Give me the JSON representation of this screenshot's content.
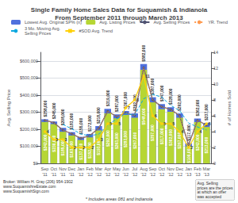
{
  "chart_data": {
    "type": "bar",
    "title": "Single Family Home Sales Data for Suquamish & Indianola\nFrom September 2011 through March 2013",
    "categories": [
      "Sep\n'11",
      "Oct\n'11",
      "Nov\n'11",
      "Dec\n'11",
      "Jan\n'12",
      "Feb\n'12",
      "Mar\n'12",
      "Apr\n'12",
      "May\n'12",
      "Jun\n'12",
      "Jul\n'12",
      "Aug\n'12",
      "Sep\n'12",
      "Oct\n'12",
      "Nov\n'12",
      "Dec\n'12",
      "Jan\n'13",
      "Feb\n'13",
      "Mar\n'13"
    ],
    "series": [
      {
        "name": "Lowest Avg. Original SP% (n)",
        "type": "bar",
        "data_labels": true,
        "values": [
          258000,
          245000,
          208000,
          183000,
          155000,
          172000,
          218000,
          319000,
          287000,
          307000,
          292000,
          582000,
          387000,
          347000,
          328000,
          292000,
          117000,
          262000,
          237000
        ],
        "value_labels": [
          "$258,000",
          "$245,000",
          "$208,000",
          "$183,000",
          "$155,000",
          "$172,000",
          "$218,000",
          "$319,000",
          "$287,000",
          "$307,000",
          "$292,000",
          "$582,000",
          "$387,000",
          "$347,000",
          "$328,000",
          "$292,000",
          "$117,000",
          "$262,000",
          "$237,000"
        ]
      },
      {
        "name": "Avg. Listing Prices",
        "type": "bar",
        "data_labels": true,
        "values": [
          242000,
          230000,
          185000,
          163000,
          137000,
          152000,
          193000,
          292000,
          263000,
          283000,
          267000,
          548000,
          357000,
          317000,
          302000,
          267000,
          100000,
          242000,
          213000
        ],
        "value_labels": [
          "$242,000",
          "$230,000",
          "$185,000",
          "$163,000",
          "$137,000",
          "$152,000",
          "$193,000",
          "$292,000",
          "$263,000",
          "$283,000",
          "$267,000",
          "$548,000",
          "$357,000",
          "$317,000",
          "$302,000",
          "$267,000",
          "$100,000",
          "$242,000",
          "$213,000"
        ]
      },
      {
        "name": "Avg. Selling Prices",
        "type": "line",
        "marker": "circle",
        "line_style": "solid",
        "values": [
          252000,
          238000,
          195000,
          173000,
          147000,
          162000,
          205000,
          305000,
          274000,
          295000,
          280000,
          560000,
          372000,
          332000,
          315000,
          280000,
          108000,
          252000,
          224000
        ]
      },
      {
        "name": "YR. Trend",
        "type": "line",
        "marker": "none",
        "line_style": "dotted",
        "values": [
          252000,
          238000,
          195000,
          173000,
          147000,
          162000,
          205000,
          305000,
          274000,
          295000,
          280000,
          560000,
          372000,
          332000,
          315000,
          280000,
          108000,
          252000,
          224000
        ]
      },
      {
        "name": "3 Mo. Moving Avg.\nSelling Prices",
        "type": "line",
        "marker": "none",
        "line_style": "dashed",
        "values": [
          null,
          null,
          228000,
          202000,
          172000,
          161000,
          171000,
          224000,
          261000,
          291000,
          283000,
          378000,
          404000,
          388000,
          340000,
          309000,
          236000,
          213000,
          195000
        ]
      },
      {
        "name": "#SOD Avg. Trend",
        "type": "line",
        "marker": "square",
        "line_style": "solid",
        "axis": "y2",
        "data_labels": true,
        "values": [
          4,
          3,
          3,
          2,
          2,
          2,
          3,
          5,
          5,
          7,
          8,
          11,
          6,
          5,
          5,
          4,
          2,
          4,
          5
        ]
      }
    ],
    "y_label": "Avg. Selling Price",
    "y2_label": "# of Homes Sold",
    "ylim": [
      0,
      650000
    ],
    "yticks": [
      {
        "value": 0,
        "label": "$0"
      },
      {
        "value": 100000,
        "label": "$100,000"
      },
      {
        "value": 200000,
        "label": "$200,000"
      },
      {
        "value": 300000,
        "label": "$300,000"
      },
      {
        "value": 400000,
        "label": "$400,000"
      },
      {
        "value": 500000,
        "label": "$500,000"
      },
      {
        "value": 600000,
        "label": "$600,000"
      }
    ],
    "y2lim": [
      0,
      14
    ],
    "y2ticks": [
      0,
      2,
      4,
      6,
      8,
      10,
      12,
      14
    ],
    "grid": true,
    "legend": "top",
    "annotations": [
      "Avg. Selling\nprices are the prices\nat which an offer\nwas accepted",
      "Broker: William H. Gray (206) 954-1902\nwww.SuquamishreEstate.com\nwww.SuquamishSign.com"
    ],
    "footnote": "* Includes areas 081 and Indianola"
  }
}
